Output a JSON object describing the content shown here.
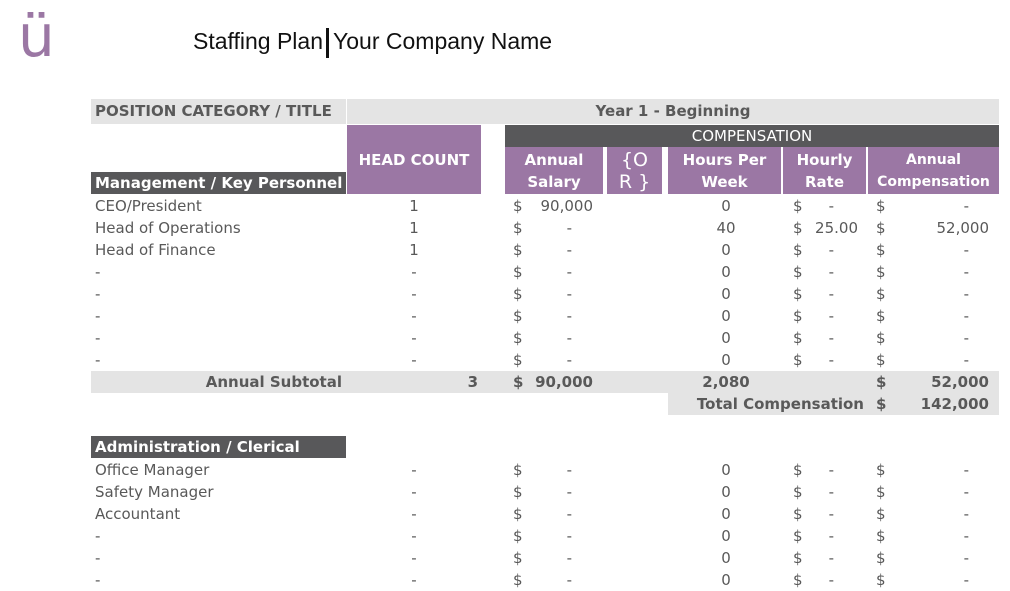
{
  "logo": "ü",
  "header": {
    "title": "Staffing Plan",
    "company": "Your Company Name"
  },
  "table": {
    "position_header": "POSITION CATEGORY / TITLE",
    "year_header": "Year 1 - Beginning",
    "compensation_header": "COMPENSATION",
    "columns": {
      "head_count": "HEAD COUNT",
      "annual_salary": "Annual Salary",
      "or": "{OR }",
      "hours": "Hours Per Week",
      "rate": "Hourly Rate",
      "comp": "Annual Compensation"
    },
    "currency": "$"
  },
  "sections": [
    {
      "name": "Management / Key Personnel",
      "rows": [
        {
          "title": "CEO/President",
          "count": "1",
          "salary": "90,000",
          "hours": "0",
          "rate": "-",
          "comp": "-"
        },
        {
          "title": "Head of Operations",
          "count": "1",
          "salary": "-",
          "hours": "40",
          "rate": "25.00",
          "comp": "52,000"
        },
        {
          "title": "Head of Finance",
          "count": "1",
          "salary": "-",
          "hours": "0",
          "rate": "-",
          "comp": "-"
        },
        {
          "title": "-",
          "count": "-",
          "salary": "-",
          "hours": "0",
          "rate": "-",
          "comp": "-"
        },
        {
          "title": "-",
          "count": "-",
          "salary": "-",
          "hours": "0",
          "rate": "-",
          "comp": "-"
        },
        {
          "title": "-",
          "count": "-",
          "salary": "-",
          "hours": "0",
          "rate": "-",
          "comp": "-"
        },
        {
          "title": "-",
          "count": "-",
          "salary": "-",
          "hours": "0",
          "rate": "-",
          "comp": "-"
        },
        {
          "title": "-",
          "count": "-",
          "salary": "-",
          "hours": "0",
          "rate": "-",
          "comp": "-"
        }
      ],
      "subtotal": {
        "label": "Annual Subtotal",
        "count": "3",
        "salary": "90,000",
        "hours": "2,080",
        "comp": "52,000"
      },
      "total": {
        "label": "Total Compensation",
        "value": "142,000"
      }
    },
    {
      "name": "Administration / Clerical",
      "rows": [
        {
          "title": "Office Manager",
          "count": "-",
          "salary": "-",
          "hours": "0",
          "rate": "-",
          "comp": "-"
        },
        {
          "title": "Safety Manager",
          "count": "-",
          "salary": "-",
          "hours": "0",
          "rate": "-",
          "comp": "-"
        },
        {
          "title": "Accountant",
          "count": "-",
          "salary": "-",
          "hours": "0",
          "rate": "-",
          "comp": "-"
        },
        {
          "title": "-",
          "count": "-",
          "salary": "-",
          "hours": "0",
          "rate": "-",
          "comp": "-"
        },
        {
          "title": "-",
          "count": "-",
          "salary": "-",
          "hours": "0",
          "rate": "-",
          "comp": "-"
        },
        {
          "title": "-",
          "count": "-",
          "salary": "-",
          "hours": "0",
          "rate": "-",
          "comp": "-"
        }
      ]
    }
  ],
  "colors": {
    "purple": "#9b77a4",
    "dark": "#58585a",
    "light": "#e4e4e4"
  }
}
